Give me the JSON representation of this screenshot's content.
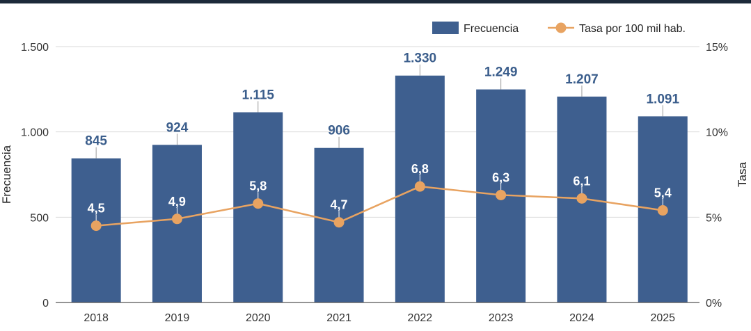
{
  "chart_data": {
    "type": "bar",
    "categories": [
      "2018",
      "2019",
      "2020",
      "2021",
      "2022",
      "2023",
      "2024",
      "2025"
    ],
    "series": [
      {
        "name": "Frecuencia",
        "type": "bar",
        "axis": "left",
        "color": "#3e5f8f",
        "values": [
          845,
          924,
          1115,
          906,
          1330,
          1249,
          1207,
          1091
        ],
        "labels": [
          "845",
          "924",
          "1.115",
          "906",
          "1.330",
          "1.249",
          "1.207",
          "1.091"
        ]
      },
      {
        "name": "Tasa por 100 mil hab.",
        "type": "line",
        "axis": "right",
        "color": "#e8a361",
        "values": [
          4.5,
          4.9,
          5.8,
          4.7,
          6.8,
          6.3,
          6.1,
          5.4
        ],
        "labels": [
          "4,5",
          "4,9",
          "5,8",
          "4,7",
          "6,8",
          "6,3",
          "6,1",
          "5,4"
        ]
      }
    ],
    "ylabel": "Frecuencia",
    "y2label": "Tasa",
    "ylim": [
      0,
      1500
    ],
    "y2lim": [
      0,
      15
    ],
    "yticks": [
      0,
      500,
      1000,
      1500
    ],
    "ytick_labels": [
      "0",
      "500",
      "1.000",
      "1.500"
    ],
    "y2ticks": [
      0,
      5,
      10,
      15
    ],
    "y2tick_labels": [
      "0%",
      "5%",
      "10%",
      "15%"
    ],
    "grid": true,
    "legend_position": "top-right"
  }
}
